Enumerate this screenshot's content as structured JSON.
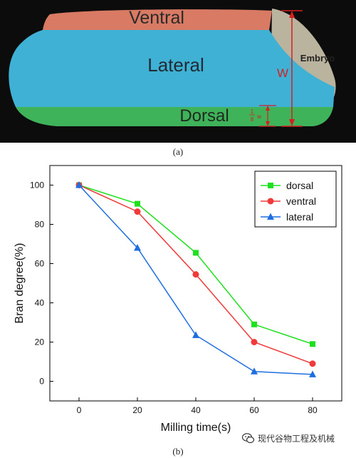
{
  "panel_a": {
    "regions": {
      "ventral": "Ventral",
      "lateral": "Lateral",
      "dorsal": "Dorsal",
      "embryo": "Embryo"
    },
    "width_symbol": "W",
    "fraction_numerator": "1",
    "fraction_denominator": "8",
    "fraction_suffix": "w",
    "caption": "(a)",
    "colors": {
      "ventral": "#d97a64",
      "lateral": "#3fb1d4",
      "dorsal": "#3fb35a",
      "annotation": "#d61f1f"
    }
  },
  "panel_b": {
    "caption": "(b)"
  },
  "chart_data": {
    "type": "line",
    "x": [
      0,
      20,
      40,
      60,
      80
    ],
    "xlabel": "Milling time(s)",
    "ylabel": "Bran degree(%)",
    "xlim": [
      -10,
      90
    ],
    "ylim": [
      -10,
      110
    ],
    "xticks": [
      "0",
      "20",
      "40",
      "60",
      "80"
    ],
    "yticks": [
      "0",
      "20",
      "40",
      "60",
      "80",
      "100"
    ],
    "grid": false,
    "legend_position": "top-right",
    "series": [
      {
        "name": "dorsal",
        "color": "#1fe01f",
        "marker": "square",
        "values": [
          100,
          90.5,
          65.5,
          29,
          19
        ]
      },
      {
        "name": "ventral",
        "color": "#f03a3a",
        "marker": "circle",
        "values": [
          100,
          86.5,
          54.5,
          20,
          9
        ]
      },
      {
        "name": "lateral",
        "color": "#1f6ee0",
        "marker": "triangle",
        "values": [
          100,
          68,
          23.5,
          5,
          3.5
        ]
      }
    ]
  },
  "watermark": "现代谷物工程及机械"
}
